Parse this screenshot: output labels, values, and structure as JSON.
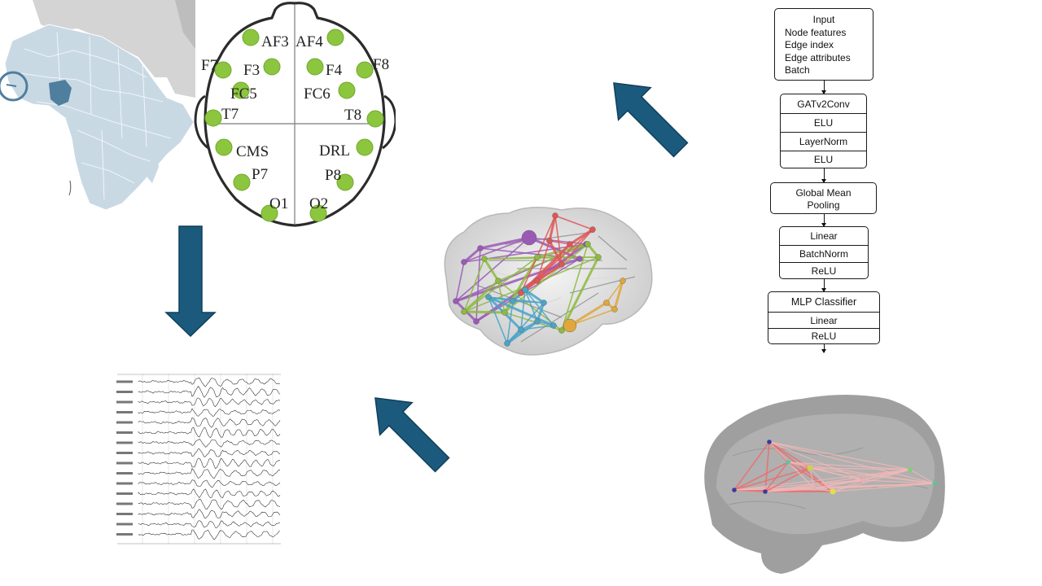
{
  "electrodes": {
    "left": [
      "AF3",
      "F7",
      "F3",
      "FC5",
      "T7",
      "CMS",
      "P7",
      "O1"
    ],
    "right": [
      "AF4",
      "F8",
      "F4",
      "FC6",
      "T8",
      "DRL",
      "P8",
      "O2"
    ]
  },
  "architecture": {
    "input": {
      "title": "Input",
      "items": [
        "Node features",
        "Edge index",
        "Edge attributes",
        "Batch"
      ]
    },
    "gat_block": [
      "GATv2Conv",
      "ELU",
      "LayerNorm",
      "ELU"
    ],
    "pooling": [
      "Global Mean",
      "Pooling"
    ],
    "linear_block": [
      "Linear",
      "BatchNorm",
      "ReLU"
    ],
    "mlp_block": [
      "MLP Classifier",
      "Linear",
      "ReLU"
    ]
  },
  "colors": {
    "arrow": "#1b5a7d",
    "electrode": "#8cc63f",
    "map_land": "#c9d9e4",
    "map_other": "#d2d2d2",
    "map_highlight": "#4f7e9f",
    "brain": "#cfcfcf"
  }
}
